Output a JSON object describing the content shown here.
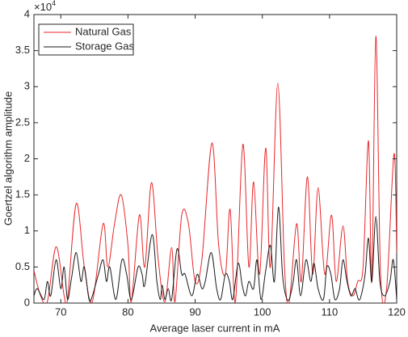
{
  "chart_data": {
    "type": "line",
    "xlabel": "Average laser current in mA",
    "ylabel": "Goertzel algorithm amplitude",
    "y_multiplier_base": "×10",
    "y_multiplier_exponent": "4",
    "xlim": [
      66,
      120
    ],
    "ylim": [
      0,
      4
    ],
    "xticks": [
      70,
      80,
      90,
      100,
      110,
      120
    ],
    "yticks": [
      0,
      0.5,
      1,
      1.5,
      2,
      2.5,
      3,
      3.5,
      4
    ],
    "grid": false,
    "legend_position": "upper-left",
    "series": [
      {
        "name": "Natural Gas",
        "color": "#e8262a",
        "x": [
          66,
          67,
          68,
          69.3,
          70.5,
          71,
          72.3,
          73.5,
          74.7,
          76.3,
          77,
          78,
          79,
          80,
          80.5,
          81.7,
          82.5,
          83.5,
          84.5,
          85.5,
          86.5,
          87,
          88,
          89,
          90,
          91,
          92.5,
          93.5,
          94.5,
          95.2,
          96,
          97.1,
          98,
          98.7,
          99.6,
          100.5,
          101.2,
          102.3,
          103.3,
          104,
          105.1,
          105.8,
          106.7,
          107.5,
          108.3,
          109.3,
          110.3,
          111,
          112,
          112.7,
          113.5,
          114.2,
          115,
          115.8,
          116.3,
          116.9,
          117.6,
          118.5,
          119.6,
          120
        ],
        "values": [
          0.45,
          0.1,
          0.02,
          0.78,
          0.1,
          0.05,
          1.38,
          0.5,
          0.02,
          1.1,
          0.5,
          1.1,
          1.5,
          0.8,
          0.02,
          1.22,
          0.5,
          1.67,
          0.6,
          0.02,
          0.77,
          0.02,
          1.22,
          1.1,
          0.3,
          0.6,
          2.22,
          0.8,
          0.4,
          1.3,
          0.02,
          2.2,
          0.5,
          1.68,
          0.4,
          2.15,
          0.5,
          3.05,
          0.5,
          0.02,
          1.1,
          0.3,
          1.75,
          0.4,
          1.6,
          0.4,
          1.22,
          0.3,
          1.07,
          0.3,
          0.1,
          0.3,
          0.5,
          2.25,
          0.3,
          3.7,
          0.4,
          0.2,
          2.07,
          0.7
        ]
      },
      {
        "name": "Storage Gas",
        "color": "#1a1a1a",
        "x": [
          66,
          66.5,
          67.5,
          68,
          68.5,
          69.3,
          70,
          70.5,
          71,
          71.6,
          72.3,
          73,
          73.5,
          74.2,
          74.7,
          75.6,
          76.3,
          76.8,
          77.3,
          78.2,
          79.1,
          79.8,
          80.5,
          81.5,
          82.1,
          82.5,
          83.6,
          84.3,
          84.8,
          85.1,
          85.5,
          86,
          86.5,
          87.3,
          88,
          88.5,
          89.5,
          90.3,
          91,
          91.5,
          92.4,
          93.2,
          93.8,
          94.5,
          95.1,
          95.6,
          96.4,
          97,
          97.5,
          98,
          98.7,
          99.2,
          99.8,
          100.5,
          101.2,
          101.8,
          102.4,
          103,
          103.5,
          104,
          104.6,
          105.1,
          105.7,
          106.5,
          107.2,
          107.7,
          108.3,
          109.1,
          109.6,
          110.2,
          110.8,
          111.5,
          112,
          112.6,
          113.2,
          113.8,
          114.3,
          114.7,
          115.3,
          115.8,
          116.3,
          116.9,
          117.5,
          118.2,
          119,
          119.5,
          120
        ],
        "values": [
          0.1,
          0.2,
          0.05,
          0.3,
          0.1,
          0.6,
          0.2,
          0.5,
          0.05,
          0.35,
          0.7,
          0.3,
          0.5,
          0.05,
          0.1,
          0.4,
          0.6,
          0.3,
          0.5,
          0.05,
          0.6,
          0.4,
          0.05,
          0.5,
          0.4,
          0.25,
          0.95,
          0.3,
          0.05,
          0.25,
          0.05,
          0.2,
          0.05,
          0.75,
          0.4,
          0.4,
          0.1,
          0.4,
          0.2,
          0.3,
          0.7,
          0.2,
          0.05,
          0.4,
          0.3,
          0.05,
          0.55,
          0.25,
          0.1,
          0.3,
          0.2,
          0.6,
          0.05,
          0.45,
          0.8,
          0.3,
          1.33,
          0.4,
          0.1,
          0.05,
          0.3,
          0.6,
          0.1,
          0.6,
          0.3,
          0.55,
          0.2,
          0.05,
          0.5,
          0.4,
          0.05,
          0.2,
          0.6,
          0.3,
          0.1,
          0.2,
          0.05,
          0.1,
          0.4,
          0.9,
          0.3,
          1.2,
          0.3,
          0.1,
          0.3,
          0.6,
          0.05
        ]
      }
    ]
  }
}
